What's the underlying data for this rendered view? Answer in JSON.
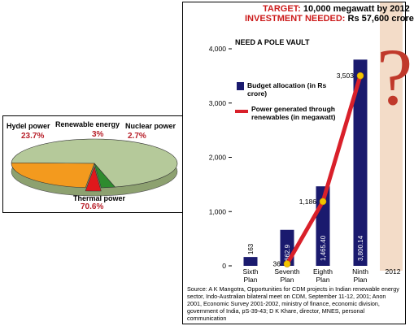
{
  "chart_data": [
    {
      "type": "pie",
      "slices": [
        {
          "label": "Thermal power",
          "value": 70.6,
          "display": "70.6%",
          "color": "#b5c99a"
        },
        {
          "label": "Hydel power",
          "value": 23.7,
          "display": "23.7%",
          "color": "#f39a1e"
        },
        {
          "label": "Nuclear power",
          "value": 2.7,
          "display": "2.7%",
          "color": "#2e8b2e"
        },
        {
          "label": "Renewable energy",
          "value": 3,
          "display": "3%",
          "color": "#e0181c"
        }
      ]
    },
    {
      "type": "bar",
      "title": "NEED A POLE VAULT",
      "categories": [
        "Sixth Plan",
        "Seventh Plan",
        "Eighth Plan",
        "Ninth Plan",
        "2012"
      ],
      "ylim": [
        0,
        4000
      ],
      "yticks": [
        "0",
        "1,000",
        "2,000",
        "3,000",
        "4,000"
      ],
      "series": [
        {
          "name": "Budget allocation (in Rs crore)",
          "type": "bar",
          "color": "#1a1a6e",
          "values": [
            163,
            662.9,
            1465.4,
            3800.14,
            null
          ],
          "labels": [
            "163",
            "662.9",
            "1,465.40",
            "3,800.14",
            ""
          ]
        },
        {
          "name": "Power generated through renewables (in megawatt)",
          "type": "line",
          "color": "#d9202a",
          "values": [
            null,
            36,
            1186,
            3503,
            null
          ],
          "labels": [
            "",
            "36",
            "1,186",
            "3,503",
            ""
          ]
        }
      ]
    }
  ],
  "left_labels": {
    "hydel": "Hydel power",
    "hydel_pct": "23.7%",
    "renewable": "Renewable energy",
    "renewable_pct": "3%",
    "nuclear": "Nuclear power",
    "nuclear_pct": "2.7%",
    "thermal": "Thermal power",
    "thermal_pct": "70.6%"
  },
  "target": {
    "label": "TARGET:",
    "value": "10,000 megawatt by 2012"
  },
  "investment": {
    "label": "INVESTMENT NEEDED:",
    "value": "Rs 57,600 crore"
  },
  "legend": {
    "bar": "Budget allocation (in Rs crore)",
    "line": "Power generated through renewables (in megawatt)"
  },
  "question_mark": "?",
  "source": "Source: A K Mangotra, Opportunities for CDM projects in Indian renewable energy sector, Indo-Australian bilateral meet on CDM, September 11-12, 2001; Anon 2001, Economic Survey 2001-2002, ministry of finance, economic division, government of India, pS-39-43; D K Khare, director, MNES, personal communication"
}
